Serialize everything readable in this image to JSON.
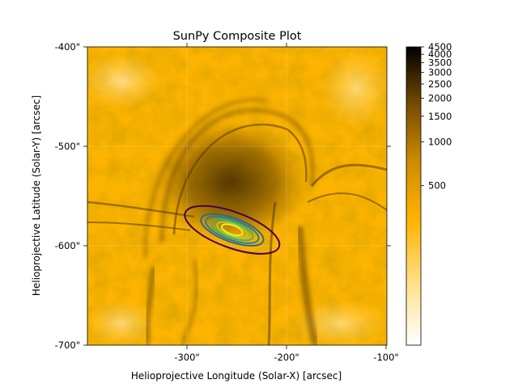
{
  "chart_data": {
    "type": "heatmap",
    "title": "SunPy Composite Plot",
    "xlabel": "Helioprojective Longitude (Solar-X) [arcsec]",
    "ylabel": "Helioprojective Latitude (Solar-Y) [arcsec]",
    "x_range": [
      -400,
      -100
    ],
    "y_range": [
      -700,
      -400
    ],
    "x_ticks": [
      {
        "value": -300,
        "label": "-300\""
      },
      {
        "value": -200,
        "label": "-200\""
      },
      {
        "value": -100,
        "label": "-100\""
      }
    ],
    "y_ticks": [
      {
        "value": -400,
        "label": "-400\""
      },
      {
        "value": -500,
        "label": "-500\""
      },
      {
        "value": -600,
        "label": "-600\""
      },
      {
        "value": -700,
        "label": "-700\""
      }
    ],
    "grid": true,
    "colormap": [
      "#ffffff",
      "#ffde8a",
      "#ffb300",
      "#b57800",
      "#5c3a00",
      "#000000"
    ],
    "colorbar": {
      "scale": "log",
      "range": [
        40,
        4500
      ],
      "ticks": [
        4500,
        4000,
        3500,
        3000,
        2500,
        2000,
        1500,
        1000,
        500
      ],
      "tick_labels": [
        "4500",
        "4000",
        "3500",
        "3000",
        "2500",
        "2000",
        "1500",
        "1000",
        "500"
      ]
    },
    "contours": [
      {
        "level": 1,
        "center": [
          -255,
          -584
        ],
        "semi_axes": [
          50,
          18
        ],
        "rotation_deg": -20,
        "color": "#440154"
      },
      {
        "level": 2,
        "center": [
          -255,
          -584
        ],
        "semi_axes": [
          33,
          12
        ],
        "rotation_deg": -20,
        "color": "#31688e"
      },
      {
        "level": 3,
        "center": [
          -255,
          -584
        ],
        "semi_axes": [
          28,
          10
        ],
        "rotation_deg": -20,
        "color": "#26828e"
      },
      {
        "level": 4,
        "center": [
          -255,
          -584
        ],
        "semi_axes": [
          22,
          8
        ],
        "rotation_deg": -20,
        "color": "#35b779"
      },
      {
        "level": 5,
        "center": [
          -255,
          -584
        ],
        "semi_axes": [
          16,
          6
        ],
        "rotation_deg": -20,
        "color": "#90d743"
      },
      {
        "level": 6,
        "center": [
          -255,
          -584
        ],
        "semi_axes": [
          11,
          4.5
        ],
        "rotation_deg": -20,
        "color": "#fde725"
      }
    ]
  }
}
